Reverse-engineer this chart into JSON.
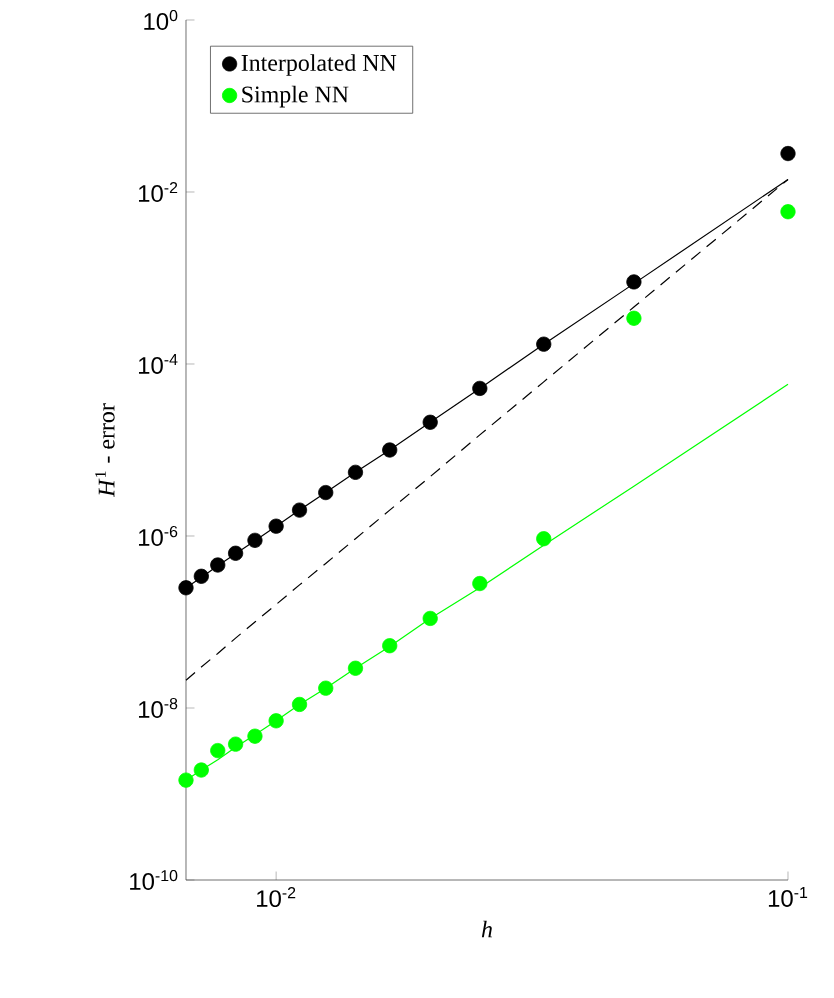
{
  "chart_data": {
    "type": "scatter",
    "xlabel": "h",
    "ylabel": "*H*$^{1}$ - error",
    "log": "xy",
    "legend": "top left",
    "grid": false,
    "x": [
      0.006667,
      0.007143,
      0.007692,
      0.008333,
      0.009091,
      0.01,
      0.01111,
      0.0125,
      0.01429,
      0.01667,
      0.02,
      0.025,
      0.03333,
      0.05,
      0.1
    ],
    "series": [
      {
        "name": "Interpolated NN",
        "color": "#000000",
        "marker": "circle",
        "values": [
          2.5e-07,
          3.4e-07,
          4.6e-07,
          6.3e-07,
          8.9e-07,
          1.3e-06,
          2e-06,
          3.2e-06,
          5.5e-06,
          1e-05,
          2.1e-05,
          5.2e-05,
          0.00017,
          0.0009,
          0.028
        ]
      },
      {
        "name": "Simple NN",
        "color": "#00ff00",
        "marker": "circle",
        "values": [
          1.45e-09,
          1.9e-09,
          3.2e-09,
          3.8e-09,
          4.7e-09,
          7.1e-09,
          1.1e-08,
          1.7e-08,
          2.9e-08,
          5.3e-08,
          1.1e-07,
          2.8e-07,
          9.3e-07,
          0.00034,
          0.0059
        ]
      },
      {
        "type": "line",
        "color": "#000000",
        "line_style": "solid",
        "marker": "none",
        "values": [
          2.5e-07,
          3.3e-07,
          4.5e-07,
          6.2e-07,
          8.8e-07,
          1.3e-06,
          2e-06,
          3.2e-06,
          5.5e-06,
          1e-05,
          2.1e-05,
          5.2e-05,
          0.00017,
          0.00086,
          0.014
        ]
      },
      {
        "type": "line",
        "color": "#000000",
        "line_style": "dashed",
        "marker": "none",
        "values": [
          2.1e-08,
          3e-08,
          4.3e-08,
          6.5e-08,
          1e-07,
          1.6e-07,
          2.7e-07,
          4.8e-07,
          9.3e-07,
          2e-06,
          4.9e-06,
          1.5e-05,
          6.2e-05,
          0.00046,
          0.014
        ]
      },
      {
        "type": "line",
        "color": "#00ff00",
        "line_style": "solid",
        "marker": "none",
        "values": [
          1.45e-09,
          1.9e-09,
          2.5e-09,
          3.5e-09,
          4.9e-09,
          7.1e-09,
          1.1e-08,
          1.7e-08,
          2.9e-08,
          5.2e-08,
          1.1e-07,
          2.5e-07,
          7.8e-07,
          3.8e-06,
          5.8e-05
        ]
      }
    ],
    "xlim": [
      0.006667,
      0.1
    ],
    "ylim": [
      1e-10,
      1
    ],
    "xticks": [
      {
        "value": 0.01,
        "label": "10$^{-2}$"
      },
      {
        "value": 0.1,
        "label": "10$^{-1}$"
      }
    ],
    "yticks": [
      {
        "value": 1e-10,
        "label": "10$^{-10}$"
      },
      {
        "value": 1e-08,
        "label": "10$^{-8}$"
      },
      {
        "value": 1e-06,
        "label": "10$^{-6}$"
      },
      {
        "value": 0.0001,
        "label": "10$^{-4}$"
      },
      {
        "value": 0.01,
        "label": "10$^{-2}$"
      },
      {
        "value": 1,
        "label": "10$^{0}$"
      }
    ]
  }
}
